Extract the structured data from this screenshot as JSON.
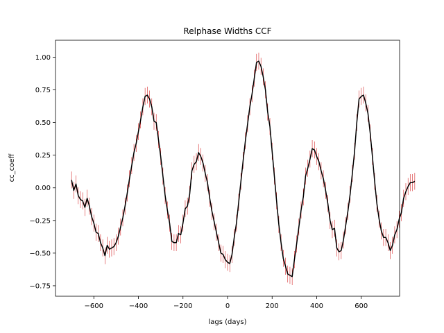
{
  "chart_data": {
    "type": "line",
    "title": "Relphase Widths CCF",
    "xlabel": "lags (days)",
    "ylabel": "cc_coeff",
    "xlim": [
      -772,
      772
    ],
    "ylim": [
      -0.83,
      1.13
    ],
    "x_ticks": [
      -600,
      -400,
      -200,
      0,
      200,
      400,
      600
    ],
    "x_tick_labels": [
      "−600",
      "−400",
      "−200",
      "0",
      "200",
      "400",
      "600"
    ],
    "y_ticks": [
      -0.75,
      -0.5,
      -0.25,
      0.0,
      0.25,
      0.5,
      0.75,
      1.0
    ],
    "y_tick_labels": [
      "−0.75",
      "−0.50",
      "−0.25",
      "0.00",
      "0.25",
      "0.50",
      "0.75",
      "1.00"
    ],
    "grid": false,
    "errorbar_color": "#d62728",
    "line_color": "#000000",
    "errorbar_halfwidth": 0.065,
    "x_start": -700,
    "x_step": 10,
    "values": [
      0.06,
      -0.02,
      0.03,
      -0.06,
      -0.09,
      -0.1,
      -0.15,
      -0.08,
      -0.14,
      -0.22,
      -0.27,
      -0.34,
      -0.35,
      -0.42,
      -0.46,
      -0.52,
      -0.44,
      -0.47,
      -0.46,
      -0.45,
      -0.42,
      -0.37,
      -0.3,
      -0.23,
      -0.14,
      -0.04,
      0.07,
      0.17,
      0.27,
      0.34,
      0.43,
      0.52,
      0.62,
      0.7,
      0.71,
      0.68,
      0.62,
      0.51,
      0.5,
      0.37,
      0.24,
      0.09,
      -0.06,
      -0.17,
      -0.27,
      -0.41,
      -0.42,
      -0.42,
      -0.35,
      -0.36,
      -0.27,
      -0.16,
      -0.14,
      -0.05,
      0.13,
      0.18,
      0.2,
      0.27,
      0.24,
      0.19,
      0.11,
      0.04,
      -0.08,
      -0.18,
      -0.26,
      -0.34,
      -0.42,
      -0.5,
      -0.51,
      -0.55,
      -0.57,
      -0.58,
      -0.51,
      -0.38,
      -0.27,
      -0.11,
      0.05,
      0.21,
      0.36,
      0.49,
      0.62,
      0.72,
      0.84,
      0.96,
      0.97,
      0.93,
      0.85,
      0.75,
      0.58,
      0.47,
      0.28,
      0.09,
      -0.1,
      -0.28,
      -0.42,
      -0.54,
      -0.6,
      -0.66,
      -0.67,
      -0.68,
      -0.55,
      -0.43,
      -0.3,
      -0.17,
      -0.07,
      0.09,
      0.15,
      0.22,
      0.3,
      0.29,
      0.24,
      0.2,
      0.13,
      0.07,
      -0.02,
      -0.12,
      -0.25,
      -0.32,
      -0.31,
      -0.46,
      -0.49,
      -0.48,
      -0.4,
      -0.29,
      -0.18,
      -0.05,
      0.11,
      0.28,
      0.5,
      0.68,
      0.7,
      0.71,
      0.65,
      0.57,
      0.42,
      0.24,
      0.05,
      -0.12,
      -0.24,
      -0.33,
      -0.38,
      -0.38,
      -0.42,
      -0.48,
      -0.44,
      -0.36,
      -0.32,
      -0.24,
      -0.19,
      -0.08,
      -0.03,
      0.01,
      0.04,
      0.04,
      0.05
    ]
  }
}
